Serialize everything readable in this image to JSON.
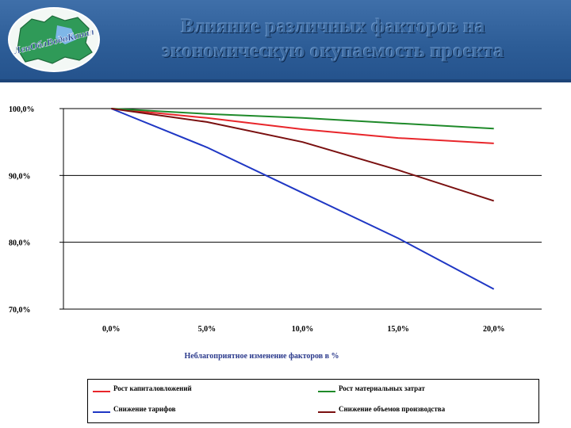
{
  "header": {
    "logo_text": "ЛенОблВодоКанал",
    "title_line1": "Влияние различных факторов на",
    "title_line2": "экономическую окупаемость проекта",
    "colors": {
      "header_bg": "#2d5d97",
      "title": "#3c6aa0"
    }
  },
  "chart_data": {
    "type": "line",
    "title": "",
    "xlabel": "Неблагоприятное изменение факторов в %",
    "ylabel": "",
    "x": [
      0,
      5,
      10,
      15,
      20
    ],
    "x_tick_labels": [
      "0,0%",
      "5,0%",
      "10,0%",
      "15,0%",
      "20,0%"
    ],
    "ylim": [
      70,
      100
    ],
    "y_tick_values": [
      70,
      80,
      90,
      100
    ],
    "y_tick_labels": [
      "70,0%",
      "80,0%",
      "90,0%",
      "100,0%"
    ],
    "grid": true,
    "legend_position": "bottom",
    "series": [
      {
        "name": "Рост капиталовложений",
        "color": "#e8262b",
        "values": [
          100,
          98.6,
          96.9,
          95.6,
          94.8
        ]
      },
      {
        "name": "Рост материальных затрат",
        "color": "#1f8a2a",
        "values": [
          100,
          99.2,
          98.6,
          97.8,
          97.0
        ]
      },
      {
        "name": "Снижение тарифов",
        "color": "#1f37c4",
        "values": [
          100,
          94.2,
          87.4,
          80.6,
          73.0
        ]
      },
      {
        "name": "Снижение объемов производства",
        "color": "#7a1010",
        "values": [
          100,
          98.0,
          95.0,
          90.8,
          86.2
        ]
      }
    ]
  }
}
